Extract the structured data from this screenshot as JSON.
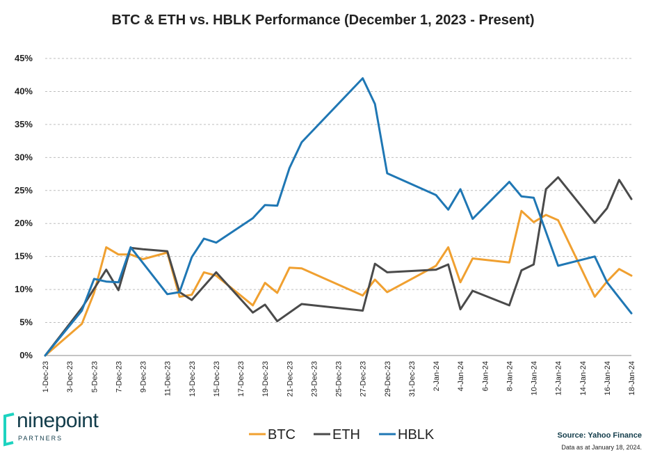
{
  "chart_data": {
    "type": "line",
    "title": "BTC & ETH vs. HBLK Performance (December 1, 2023 - Present)",
    "xlabel": "",
    "ylabel": "",
    "ylim": [
      0,
      45
    ],
    "y_ticks": [
      "0%",
      "5%",
      "10%",
      "15%",
      "20%",
      "25%",
      "30%",
      "35%",
      "40%",
      "45%"
    ],
    "grid": "horizontal dashed",
    "x_tick_labels": [
      "1-Dec-23",
      "3-Dec-23",
      "5-Dec-23",
      "7-Dec-23",
      "9-Dec-23",
      "11-Dec-23",
      "13-Dec-23",
      "15-Dec-23",
      "17-Dec-23",
      "19-Dec-23",
      "21-Dec-23",
      "23-Dec-23",
      "25-Dec-23",
      "27-Dec-23",
      "29-Dec-23",
      "31-Dec-23",
      "2-Jan-24",
      "4-Jan-24",
      "6-Jan-24",
      "8-Jan-24",
      "10-Jan-24",
      "12-Jan-24",
      "14-Jan-24",
      "16-Jan-24",
      "18-Jan-24"
    ],
    "legend_position": "bottom-center",
    "series": [
      {
        "name": "BTC",
        "color": "#f0a030",
        "points": [
          [
            "2023-12-01",
            0.0
          ],
          [
            "2023-12-04",
            4.8
          ],
          [
            "2023-12-05",
            9.5
          ],
          [
            "2023-12-06",
            16.4
          ],
          [
            "2023-12-07",
            15.3
          ],
          [
            "2023-12-08",
            15.3
          ],
          [
            "2023-12-09",
            14.6
          ],
          [
            "2023-12-11",
            15.6
          ],
          [
            "2023-12-12",
            8.9
          ],
          [
            "2023-12-13",
            9.2
          ],
          [
            "2023-12-14",
            12.6
          ],
          [
            "2023-12-15",
            12.1
          ],
          [
            "2023-12-18",
            7.6
          ],
          [
            "2023-12-19",
            11.0
          ],
          [
            "2023-12-20",
            9.5
          ],
          [
            "2023-12-21",
            13.3
          ],
          [
            "2023-12-22",
            13.2
          ],
          [
            "2023-12-27",
            9.1
          ],
          [
            "2023-12-28",
            11.5
          ],
          [
            "2023-12-29",
            9.6
          ],
          [
            "2024-01-02",
            13.6
          ],
          [
            "2024-01-03",
            16.4
          ],
          [
            "2024-01-04",
            11.1
          ],
          [
            "2024-01-05",
            14.7
          ],
          [
            "2024-01-08",
            14.1
          ],
          [
            "2024-01-09",
            21.9
          ],
          [
            "2024-01-10",
            20.2
          ],
          [
            "2024-01-11",
            21.3
          ],
          [
            "2024-01-12",
            20.5
          ],
          [
            "2024-01-15",
            8.9
          ],
          [
            "2024-01-16",
            11.2
          ],
          [
            "2024-01-17",
            13.1
          ],
          [
            "2024-01-18",
            12.1
          ]
        ]
      },
      {
        "name": "ETH",
        "color": "#4a4a4a",
        "points": [
          [
            "2023-12-01",
            0.0
          ],
          [
            "2023-12-04",
            7.2
          ],
          [
            "2023-12-06",
            13.0
          ],
          [
            "2023-12-07",
            9.9
          ],
          [
            "2023-12-08",
            16.3
          ],
          [
            "2023-12-09",
            16.1
          ],
          [
            "2023-12-11",
            15.8
          ],
          [
            "2023-12-12",
            9.6
          ],
          [
            "2023-12-13",
            8.4
          ],
          [
            "2023-12-15",
            12.6
          ],
          [
            "2023-12-18",
            6.5
          ],
          [
            "2023-12-19",
            7.7
          ],
          [
            "2023-12-20",
            5.2
          ],
          [
            "2023-12-22",
            7.8
          ],
          [
            "2023-12-27",
            6.8
          ],
          [
            "2023-12-28",
            13.9
          ],
          [
            "2023-12-29",
            12.6
          ],
          [
            "2024-01-02",
            13.0
          ],
          [
            "2024-01-03",
            13.8
          ],
          [
            "2024-01-04",
            7.0
          ],
          [
            "2024-01-05",
            9.8
          ],
          [
            "2024-01-08",
            7.6
          ],
          [
            "2024-01-09",
            12.9
          ],
          [
            "2024-01-10",
            13.8
          ],
          [
            "2024-01-11",
            25.2
          ],
          [
            "2024-01-12",
            27.0
          ],
          [
            "2024-01-15",
            20.1
          ],
          [
            "2024-01-16",
            22.3
          ],
          [
            "2024-01-17",
            26.6
          ],
          [
            "2024-01-18",
            23.7
          ]
        ]
      },
      {
        "name": "HBLK",
        "color": "#1f77b4",
        "points": [
          [
            "2023-12-01",
            0.0
          ],
          [
            "2023-12-04",
            6.8
          ],
          [
            "2023-12-05",
            11.6
          ],
          [
            "2023-12-06",
            11.2
          ],
          [
            "2023-12-07",
            11.1
          ],
          [
            "2023-12-08",
            16.4
          ],
          [
            "2023-12-11",
            9.3
          ],
          [
            "2023-12-12",
            9.6
          ],
          [
            "2023-12-13",
            14.9
          ],
          [
            "2023-12-14",
            17.7
          ],
          [
            "2023-12-15",
            17.1
          ],
          [
            "2023-12-18",
            20.8
          ],
          [
            "2023-12-19",
            22.8
          ],
          [
            "2023-12-20",
            22.7
          ],
          [
            "2023-12-21",
            28.4
          ],
          [
            "2023-12-22",
            32.3
          ],
          [
            "2023-12-27",
            42.0
          ],
          [
            "2023-12-28",
            38.1
          ],
          [
            "2023-12-29",
            27.6
          ],
          [
            "2024-01-02",
            24.3
          ],
          [
            "2024-01-03",
            22.1
          ],
          [
            "2024-01-04",
            25.2
          ],
          [
            "2024-01-05",
            20.7
          ],
          [
            "2024-01-08",
            26.3
          ],
          [
            "2024-01-09",
            24.1
          ],
          [
            "2024-01-10",
            23.9
          ],
          [
            "2024-01-12",
            13.6
          ],
          [
            "2024-01-15",
            15.0
          ],
          [
            "2024-01-16",
            11.1
          ],
          [
            "2024-01-18",
            6.4
          ]
        ]
      }
    ]
  },
  "branding": {
    "logo_word": "ninepoint",
    "logo_sub": "PARTNERS",
    "source": "Source: Yahoo Finance",
    "as_of": "Data as at January 18, 2024."
  }
}
